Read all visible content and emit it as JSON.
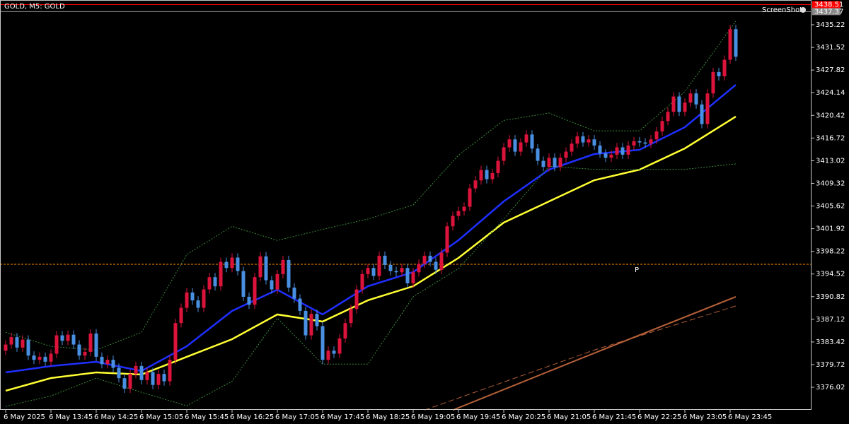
{
  "chart_data": {
    "type": "candlestick",
    "title": "GOLD, M5: GOLD",
    "watermark": "ScreenShot",
    "background": "#000000",
    "up_color": "#dc143c",
    "down_color": "#4a90e2",
    "grid": false,
    "ylim": [
      3372.33,
      3439.26
    ],
    "yticks": [
      3435.22,
      3431.52,
      3427.82,
      3424.14,
      3420.42,
      3416.72,
      3413.02,
      3409.32,
      3405.62,
      3401.92,
      3398.22,
      3394.52,
      3390.82,
      3387.12,
      3383.42,
      3379.72,
      3376.02
    ],
    "categories": [
      "6 May 2025",
      null,
      null,
      null,
      null,
      null,
      null,
      null,
      "6 May 13:45",
      null,
      null,
      null,
      null,
      null,
      null,
      null,
      "6 May 14:25",
      null,
      null,
      null,
      null,
      null,
      null,
      null,
      "6 May 15:05",
      null,
      null,
      null,
      null,
      null,
      null,
      null,
      "6 May 15:45",
      null,
      null,
      null,
      null,
      null,
      null,
      null,
      "6 May 16:25",
      null,
      null,
      null,
      null,
      null,
      null,
      null,
      "6 May 17:05",
      null,
      null,
      null,
      null,
      null,
      null,
      null,
      "6 May 17:45",
      null,
      null,
      null,
      null,
      null,
      null,
      null,
      "6 May 18:25",
      null,
      null,
      null,
      null,
      null,
      null,
      null,
      "6 May 19:05",
      null,
      null,
      null,
      null,
      null,
      null,
      null,
      "6 May 19:45",
      null,
      null,
      null,
      null,
      null,
      null,
      null,
      "6 May 20:25",
      null,
      null,
      null,
      null,
      null,
      null,
      null,
      "6 May 21:05",
      null,
      null,
      null,
      null,
      null,
      null,
      null,
      "6 May 21:45",
      null,
      null,
      null,
      null,
      null,
      null,
      null,
      "6 May 22:25",
      null,
      null,
      null,
      null,
      null,
      null,
      null,
      "6 May 23:05",
      null,
      null,
      null,
      null,
      null,
      null,
      null,
      "6 May 23:45",
      null
    ],
    "open": [
      3382.0,
      3383.0,
      3384.2,
      3382.5,
      3383.8,
      3381.2,
      3380.5,
      3381.0,
      3380.2,
      3381.5,
      3384.5,
      3383.6,
      3384.6,
      3383.0,
      3381.2,
      3381.8,
      3384.8,
      3381.0,
      3379.8,
      3380.5,
      3379.2,
      3377.5,
      3375.8,
      3378.2,
      3379.5,
      3377.2,
      3378.5,
      3376.4,
      3378.2,
      3377.0,
      3380.5,
      3386.5,
      3389.0,
      3391.5,
      3390.2,
      3389.0,
      3392.0,
      3394.0,
      3392.5,
      3396.5,
      3395.5,
      3397.2,
      3395.0,
      3390.8,
      3389.5,
      3394.0,
      3397.4,
      3393.5,
      3392.0,
      3394.5,
      3396.8,
      3392.3,
      3390.5,
      3388.5,
      3384.5,
      3388.0,
      3386.0,
      3380.5,
      3382.0,
      3381.5,
      3384.0,
      3386.5,
      3388.8,
      3392.0,
      3394.5,
      3395.5,
      3394.2,
      3397.5,
      3396.0,
      3395.0,
      3394.8,
      3395.5,
      3393.0,
      3394.8,
      3396.2,
      3397.5,
      3396.5,
      3395.2,
      3398.0,
      3402.3,
      3404.0,
      3404.8,
      3405.5,
      3408.5,
      3409.8,
      3411.5,
      3410.0,
      3411.0,
      3413.0,
      3415.2,
      3416.5,
      3414.5,
      3416.0,
      3417.3,
      3415.0,
      3413.0,
      3412.0,
      3413.5,
      3412.0,
      3413.5,
      3414.5,
      3415.8,
      3417.0,
      3416.0,
      3416.5,
      3415.5,
      3414.2,
      3413.5,
      3414.0,
      3415.2,
      3414.0,
      3415.5,
      3416.2,
      3416.0,
      3415.8,
      3416.5,
      3417.8,
      3419.5,
      3421.0,
      3423.5,
      3421.0,
      3422.5,
      3424.0,
      3422.2,
      3419.0,
      3424.0,
      3427.5,
      3426.8,
      3429.5,
      3434.5
    ],
    "high": [
      3383.7,
      3384.9,
      3384.9,
      3384.5,
      3384.5,
      3381.9,
      3381.7,
      3381.7,
      3382.2,
      3385.2,
      3385.2,
      3385.3,
      3385.3,
      3383.7,
      3382.5,
      3385.5,
      3385.5,
      3381.7,
      3381.2,
      3381.2,
      3379.9,
      3378.2,
      3378.9,
      3380.2,
      3380.2,
      3379.2,
      3379.2,
      3378.9,
      3378.9,
      3381.2,
      3387.2,
      3389.7,
      3392.2,
      3392.2,
      3390.9,
      3392.7,
      3394.7,
      3394.7,
      3397.2,
      3397.2,
      3397.9,
      3397.9,
      3395.7,
      3391.5,
      3394.7,
      3398.1,
      3398.1,
      3394.2,
      3395.2,
      3397.5,
      3397.5,
      3393.0,
      3391.2,
      3389.2,
      3388.7,
      3388.7,
      3386.7,
      3382.7,
      3382.7,
      3384.7,
      3387.2,
      3389.5,
      3392.7,
      3395.2,
      3396.2,
      3396.2,
      3398.2,
      3398.2,
      3396.7,
      3395.7,
      3396.2,
      3396.2,
      3395.5,
      3396.9,
      3398.2,
      3398.2,
      3397.2,
      3398.7,
      3403.0,
      3404.7,
      3405.5,
      3406.2,
      3409.2,
      3410.5,
      3412.2,
      3412.2,
      3411.7,
      3413.7,
      3415.9,
      3417.2,
      3417.2,
      3416.7,
      3418.0,
      3418.0,
      3415.7,
      3413.7,
      3414.2,
      3414.2,
      3414.2,
      3415.2,
      3416.5,
      3417.7,
      3417.7,
      3417.2,
      3417.2,
      3416.2,
      3414.9,
      3414.7,
      3415.9,
      3415.9,
      3416.2,
      3416.9,
      3416.9,
      3416.7,
      3417.2,
      3418.5,
      3420.2,
      3421.7,
      3424.2,
      3424.2,
      3423.2,
      3424.7,
      3424.7,
      3422.9,
      3424.7,
      3428.2,
      3428.2,
      3430.2,
      3435.2,
      3435.2
    ],
    "low": [
      3381.3,
      3382.3,
      3381.8,
      3381.8,
      3380.5,
      3379.8,
      3379.8,
      3379.5,
      3379.5,
      3380.8,
      3382.9,
      3382.9,
      3382.3,
      3380.5,
      3380.5,
      3381.1,
      3380.3,
      3379.1,
      3379.1,
      3378.5,
      3376.8,
      3375.1,
      3375.1,
      3377.5,
      3376.5,
      3376.5,
      3375.7,
      3375.7,
      3376.3,
      3376.3,
      3379.8,
      3385.8,
      3388.3,
      3389.5,
      3388.3,
      3388.3,
      3391.3,
      3391.8,
      3391.8,
      3394.8,
      3394.8,
      3394.3,
      3390.1,
      3388.8,
      3388.8,
      3393.3,
      3392.8,
      3391.3,
      3391.3,
      3393.8,
      3391.6,
      3389.8,
      3387.8,
      3383.8,
      3383.8,
      3385.3,
      3379.8,
      3379.8,
      3380.8,
      3380.8,
      3383.3,
      3385.8,
      3388.1,
      3391.3,
      3393.8,
      3393.5,
      3393.5,
      3395.3,
      3394.3,
      3394.1,
      3394.1,
      3392.3,
      3392.3,
      3394.1,
      3395.5,
      3395.8,
      3394.5,
      3394.5,
      3397.3,
      3401.6,
      3403.3,
      3404.1,
      3404.8,
      3407.8,
      3409.1,
      3409.3,
      3409.3,
      3410.3,
      3412.3,
      3414.5,
      3413.8,
      3413.8,
      3415.3,
      3414.3,
      3412.3,
      3411.3,
      3411.3,
      3411.3,
      3411.3,
      3412.8,
      3413.8,
      3415.1,
      3415.3,
      3415.3,
      3414.8,
      3413.5,
      3412.8,
      3412.8,
      3413.3,
      3413.3,
      3413.3,
      3414.8,
      3415.3,
      3415.1,
      3415.1,
      3415.8,
      3417.1,
      3418.8,
      3420.3,
      3420.3,
      3420.3,
      3421.8,
      3421.5,
      3418.3,
      3418.3,
      3423.3,
      3426.1,
      3426.1,
      3428.8,
      3429.3
    ],
    "close": [
      3383.0,
      3384.2,
      3382.5,
      3383.8,
      3381.2,
      3380.5,
      3381.0,
      3380.2,
      3381.5,
      3384.5,
      3383.6,
      3384.6,
      3383.0,
      3381.2,
      3381.8,
      3384.8,
      3381.0,
      3379.8,
      3380.5,
      3379.2,
      3377.5,
      3375.8,
      3378.2,
      3379.5,
      3377.2,
      3378.5,
      3376.4,
      3378.2,
      3377.0,
      3380.5,
      3386.5,
      3389.0,
      3391.5,
      3390.2,
      3389.0,
      3392.0,
      3394.0,
      3392.5,
      3396.5,
      3395.5,
      3397.2,
      3395.0,
      3390.8,
      3389.5,
      3394.0,
      3397.4,
      3393.5,
      3392.0,
      3394.5,
      3396.8,
      3392.3,
      3390.5,
      3388.5,
      3384.5,
      3388.0,
      3386.0,
      3380.5,
      3382.0,
      3381.5,
      3384.0,
      3386.5,
      3388.8,
      3392.0,
      3394.5,
      3395.5,
      3394.2,
      3397.5,
      3396.0,
      3395.0,
      3394.8,
      3395.5,
      3393.0,
      3394.8,
      3396.2,
      3397.5,
      3396.5,
      3395.2,
      3398.0,
      3402.3,
      3404.0,
      3404.8,
      3405.5,
      3408.5,
      3409.8,
      3411.5,
      3410.0,
      3411.0,
      3413.0,
      3415.2,
      3416.5,
      3414.5,
      3416.0,
      3417.3,
      3415.0,
      3413.0,
      3412.0,
      3413.5,
      3412.0,
      3413.5,
      3414.5,
      3415.8,
      3417.0,
      3416.0,
      3416.5,
      3415.5,
      3414.2,
      3413.5,
      3414.0,
      3415.2,
      3414.0,
      3415.5,
      3416.2,
      3416.0,
      3415.8,
      3416.5,
      3417.8,
      3419.5,
      3421.0,
      3423.5,
      3421.0,
      3422.5,
      3424.0,
      3422.2,
      3419.0,
      3424.0,
      3427.5,
      3426.8,
      3429.5,
      3434.5,
      3430.0
    ],
    "lines": [
      {
        "color": "#1f2fff",
        "style": "solid",
        "width": 2.5,
        "x": [
          0,
          8,
          16,
          24,
          32,
          40,
          48,
          56,
          64,
          72,
          80,
          88,
          96,
          104,
          112,
          120,
          129
        ],
        "values": [
          3378.45,
          3379.49,
          3380.18,
          3378.68,
          3382.72,
          3388.49,
          3391.95,
          3387.91,
          3392.52,
          3394.83,
          3400.03,
          3406.37,
          3411.56,
          3414.1,
          3414.8,
          3418.49,
          3425.41
        ]
      },
      {
        "color": "#ffff33",
        "style": "solid",
        "width": 2.5,
        "x": [
          0,
          8,
          16,
          24,
          32,
          40,
          48,
          56,
          64,
          72,
          80,
          88,
          96,
          104,
          112,
          120,
          129
        ],
        "values": [
          3375.45,
          3377.52,
          3378.45,
          3378.1,
          3380.99,
          3383.87,
          3387.91,
          3386.75,
          3390.22,
          3392.52,
          3397.14,
          3402.91,
          3406.37,
          3409.83,
          3411.56,
          3415.03,
          3420.22
        ]
      },
      {
        "color": "#3c8a3c",
        "style": "dotted",
        "width": 1,
        "x": [
          0,
          8,
          16,
          24,
          32,
          40,
          48,
          56,
          64,
          72,
          80,
          88,
          96,
          104,
          112,
          120,
          129
        ],
        "values": [
          3385.0,
          3382.7,
          3382.1,
          3385.0,
          3397.7,
          3402.3,
          3400.0,
          3401.8,
          3403.5,
          3405.8,
          3413.9,
          3419.6,
          3420.8,
          3417.9,
          3417.9,
          3424.3,
          3435.8
        ]
      },
      {
        "color": "#3c8a3c",
        "style": "dotted",
        "width": 1,
        "x": [
          0,
          8,
          16,
          24,
          32,
          40,
          48,
          56,
          64,
          72,
          80,
          88,
          96,
          104,
          112,
          120,
          129
        ],
        "values": [
          3372.9,
          3374.6,
          3377.5,
          3375.2,
          3373.0,
          3377.0,
          3387.3,
          3379.8,
          3379.8,
          3390.8,
          3395.4,
          3403.5,
          3412.1,
          3411.6,
          3411.6,
          3411.6,
          3412.5
        ]
      },
      {
        "color": "#b5603a",
        "style": "solid",
        "width": 2,
        "x": [
          79,
          104,
          129
        ],
        "values": [
          3372.3,
          3381.6,
          3390.8
        ]
      },
      {
        "color": "#b5603a",
        "style": "dashed",
        "width": 1,
        "x": [
          74,
          104,
          129
        ],
        "values": [
          3372.3,
          3382.1,
          3389.3
        ]
      }
    ],
    "level": {
      "value": 3396.1,
      "label": "P",
      "color": "#ff8c00"
    },
    "price_tags": [
      {
        "value": 3438.51,
        "color": "#ff0000"
      },
      {
        "value": 3437.37,
        "color": "#8a8a8a"
      }
    ]
  }
}
